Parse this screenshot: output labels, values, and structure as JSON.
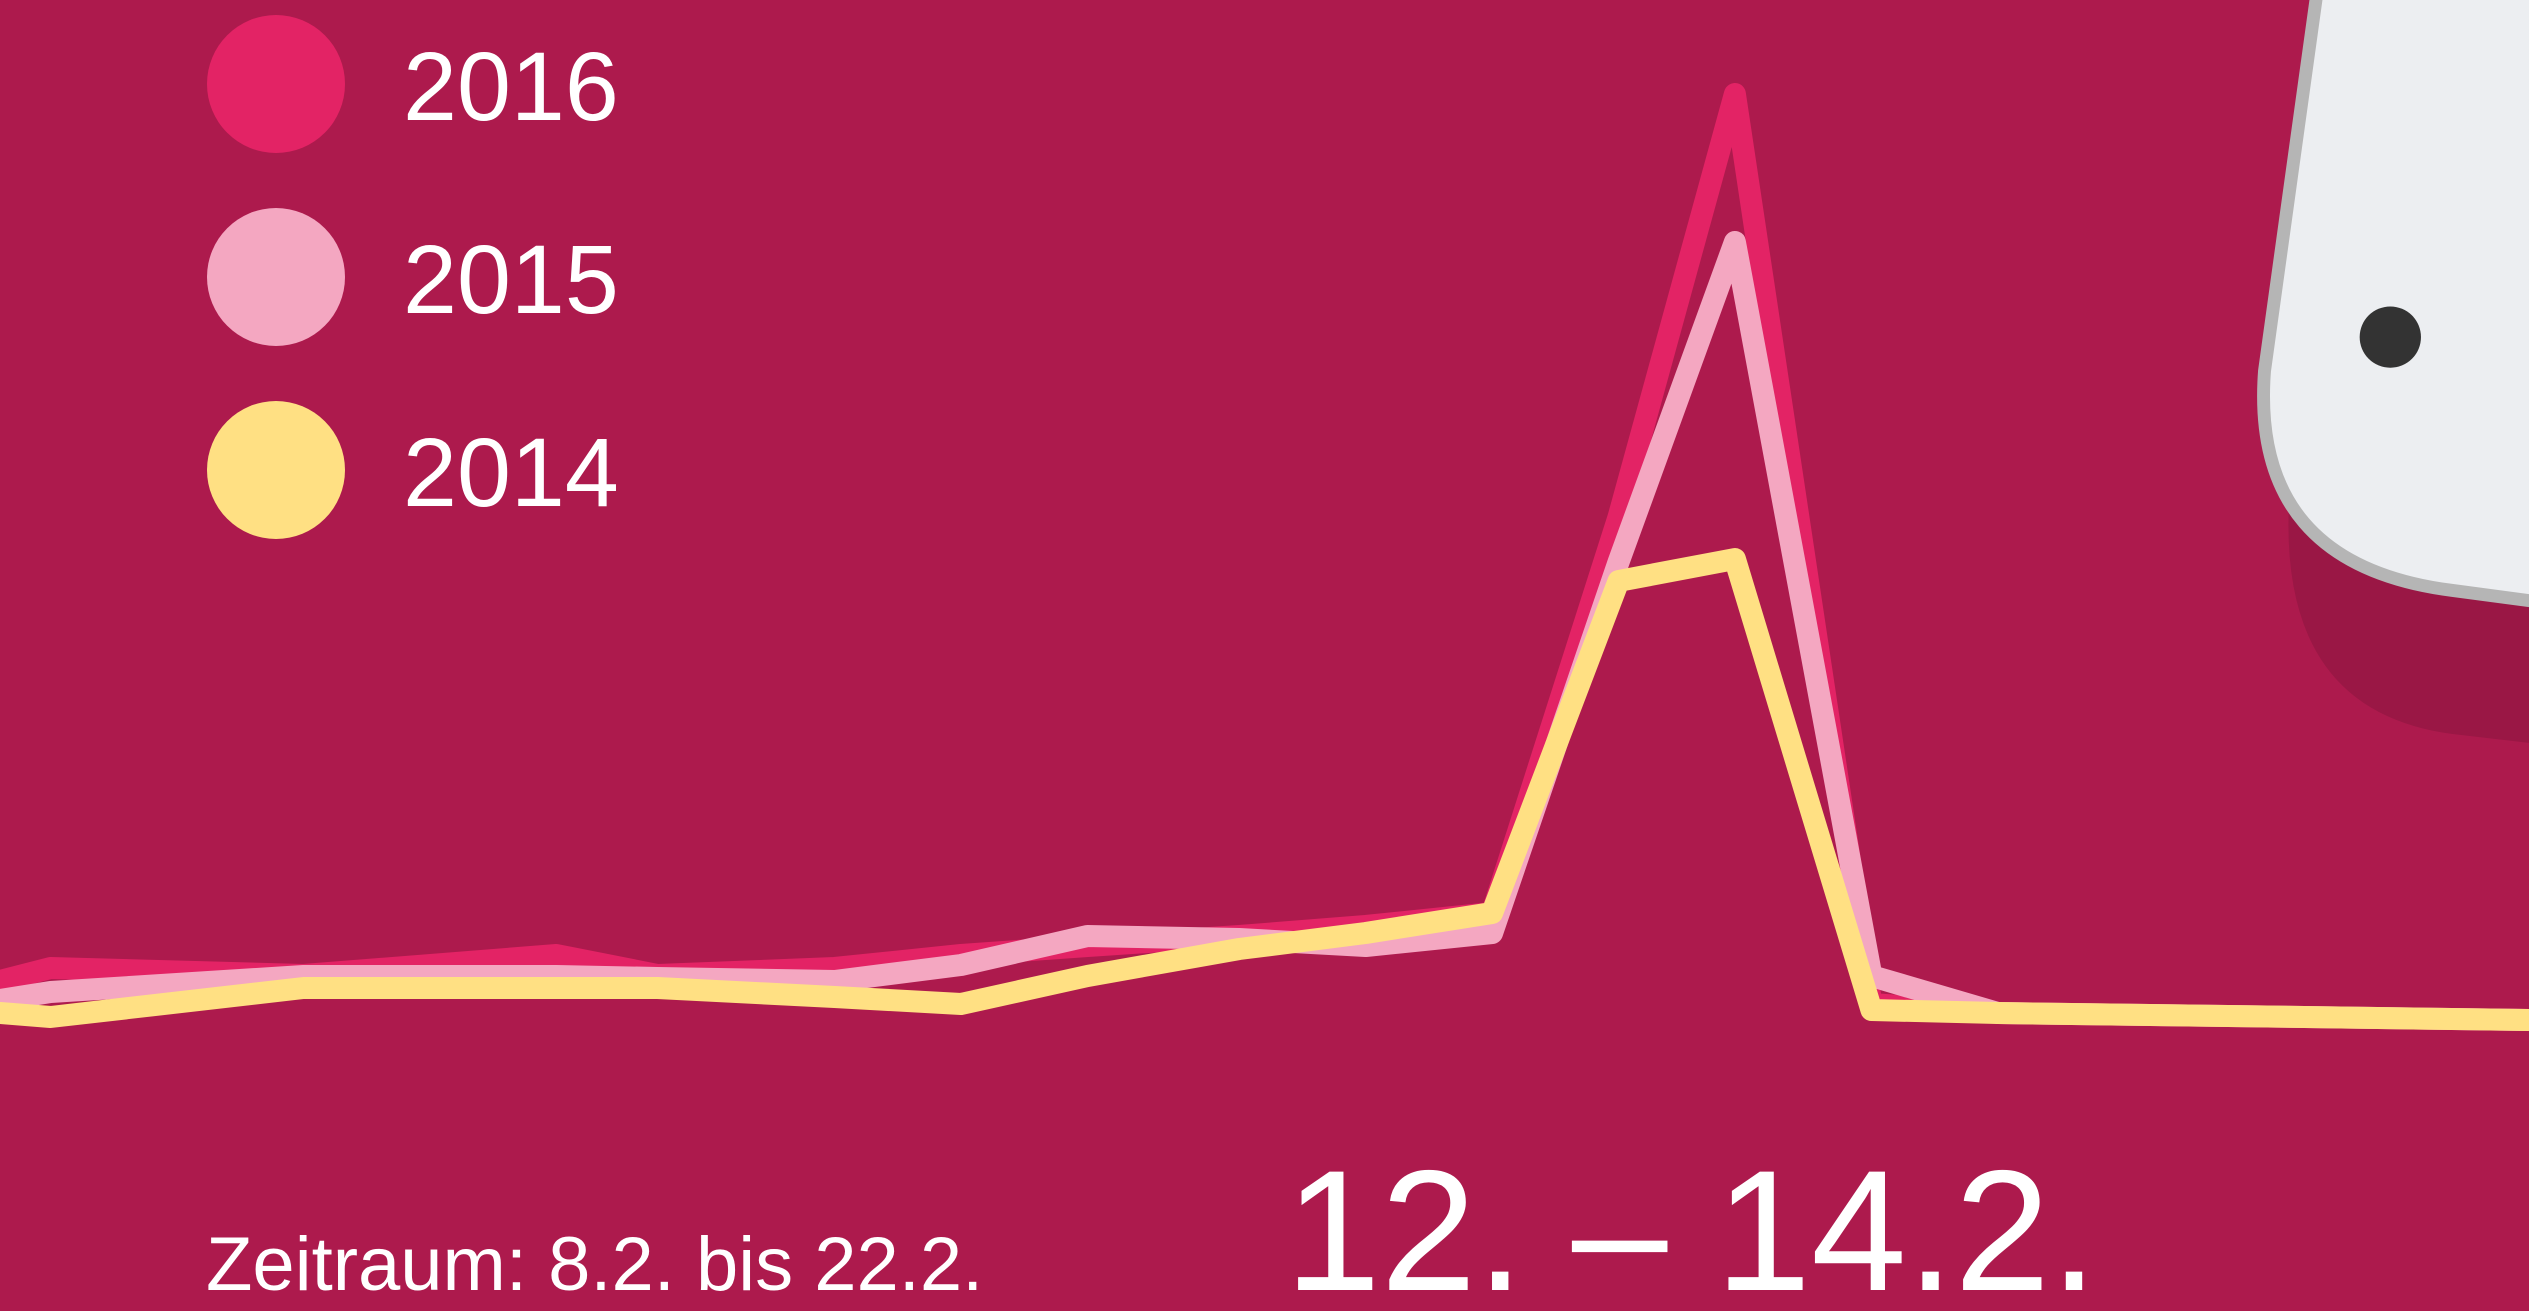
{
  "chart_data": {
    "type": "line",
    "x": [
      0,
      2,
      12,
      22,
      26,
      33,
      38,
      43,
      49,
      54,
      59,
      64,
      68.6,
      74,
      79,
      100
    ],
    "xlim": [
      0,
      100
    ],
    "ylim": [
      0,
      100
    ],
    "series": [
      {
        "name": "2016",
        "color": "#e32365",
        "values": [
          8.4,
          9.7,
          9,
          11,
          9,
          9.7,
          11,
          11.9,
          12.9,
          13.9,
          15.2,
          54.8,
          97.1,
          6.1,
          5.2,
          4.5
        ]
      },
      {
        "name": "2015",
        "color": "#f4a7c1",
        "values": [
          6.5,
          7.3,
          8.9,
          8.9,
          8.7,
          8.4,
          10,
          12.9,
          12.6,
          11.9,
          13.2,
          50.3,
          82.3,
          8.9,
          5.2,
          4.5
        ]
      },
      {
        "name": "2014",
        "color": "#ffe083",
        "values": [
          5.2,
          4.8,
          7.7,
          7.7,
          7.7,
          6.8,
          6.1,
          8.9,
          11.6,
          13.2,
          15.2,
          48.4,
          50.6,
          5.5,
          5.2,
          4.5
        ]
      }
    ],
    "period_note": "Zeitraum: 8.2. bis 22.2.",
    "highlight": "12. – 14.2."
  }
}
